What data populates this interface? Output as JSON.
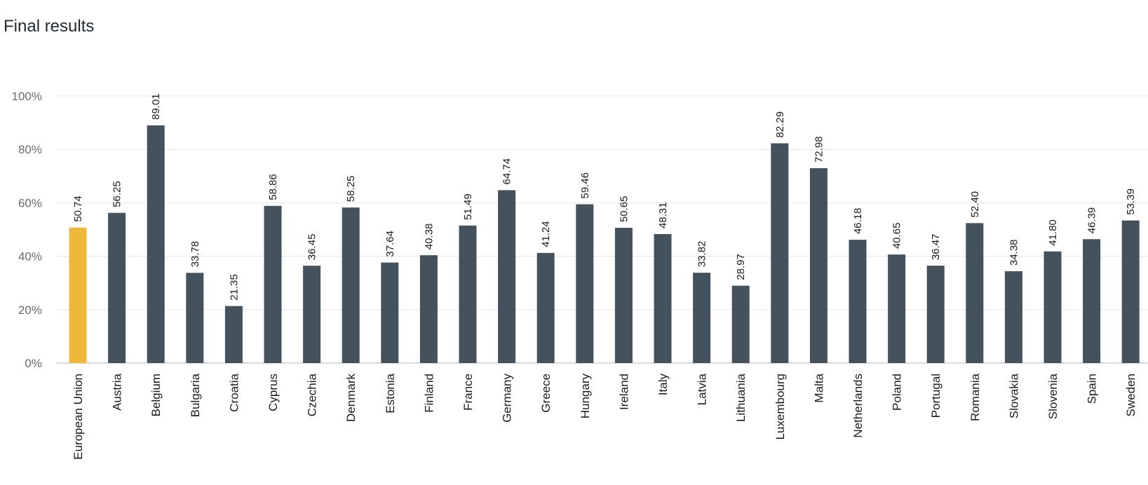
{
  "page": {
    "title": "Final results"
  },
  "chart_data": {
    "type": "bar",
    "title": "Final results",
    "xlabel": "",
    "ylabel": "",
    "ylim": [
      0,
      100
    ],
    "y_ticks": [
      "0%",
      "20%",
      "40%",
      "60%",
      "80%",
      "100%"
    ],
    "y_tick_values": [
      0,
      20,
      40,
      60,
      80,
      100
    ],
    "grid": true,
    "legend": "none",
    "colors": {
      "highlight": "#efb83a",
      "default": "#43525c",
      "grid": "#e3e6ea",
      "axis": "#c9ced6"
    },
    "categories": [
      "European Union",
      "Austria",
      "Belgium",
      "Bulgaria",
      "Croatia",
      "Cyprus",
      "Czechia",
      "Denmark",
      "Estonia",
      "Finland",
      "France",
      "Germany",
      "Greece",
      "Hungary",
      "Ireland",
      "Italy",
      "Latvia",
      "Lithuania",
      "Luxembourg",
      "Malta",
      "Netherlands",
      "Poland",
      "Portugal",
      "Romania",
      "Slovakia",
      "Slovenia",
      "Spain",
      "Sweden"
    ],
    "values": [
      50.74,
      56.25,
      89.01,
      33.78,
      21.35,
      58.86,
      36.45,
      58.25,
      37.64,
      40.38,
      51.49,
      64.74,
      41.24,
      59.46,
      50.65,
      48.31,
      33.82,
      28.97,
      82.29,
      72.98,
      46.18,
      40.65,
      36.47,
      52.4,
      34.38,
      41.8,
      46.39,
      53.39
    ],
    "value_labels": [
      "50.74",
      "56.25",
      "89.01",
      "33.78",
      "21.35",
      "58.86",
      "36.45",
      "58.25",
      "37.64",
      "40.38",
      "51.49",
      "64.74",
      "41.24",
      "59.46",
      "50.65",
      "48.31",
      "33.82",
      "28.97",
      "82.29",
      "72.98",
      "46.18",
      "40.65",
      "36.47",
      "52.40",
      "34.38",
      "41.80",
      "46.39",
      "53.39"
    ],
    "highlight_category": "European Union"
  }
}
